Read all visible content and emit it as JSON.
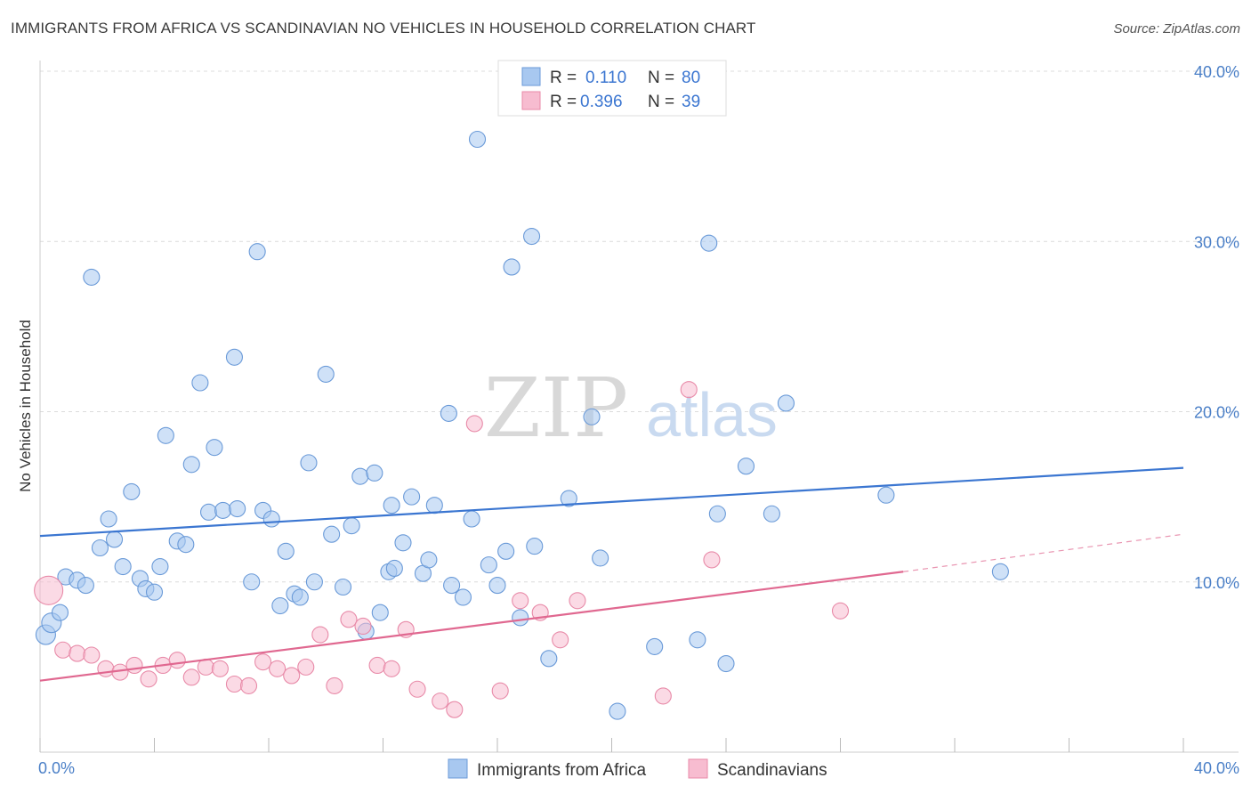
{
  "title": "IMMIGRANTS FROM AFRICA VS SCANDINAVIAN NO VEHICLES IN HOUSEHOLD CORRELATION CHART",
  "source": "Source: ZipAtlas.com",
  "watermark": {
    "zip": "ZIP",
    "atlas": "atlas"
  },
  "legend": {
    "r_label": "R =",
    "n_label": "N =",
    "rows": [
      {
        "r": "0.110",
        "n": "80",
        "color": "#a8c8f0",
        "stroke": "#6a9ad8"
      },
      {
        "r": "0.396",
        "n": "39",
        "color": "#f7bcd0",
        "stroke": "#e88aa8"
      }
    ]
  },
  "chart_data": {
    "type": "scatter",
    "title": "IMMIGRANTS FROM AFRICA VS SCANDINAVIAN NO VEHICLES IN HOUSEHOLD CORRELATION CHART",
    "xlabel": "",
    "ylabel": "No Vehicles in Household",
    "xlim": [
      0,
      40
    ],
    "ylim": [
      0,
      40
    ],
    "x_tick_labels": [
      "0.0%",
      "40.0%"
    ],
    "y_ticks": [
      10,
      20,
      30,
      40
    ],
    "y_tick_labels": [
      "10.0%",
      "20.0%",
      "30.0%",
      "40.0%"
    ],
    "grid": true,
    "series": [
      {
        "name": "Immigrants from Africa",
        "color": "#a8c8f0",
        "stroke": "#6a9ad8",
        "trend": {
          "x": [
            0,
            40
          ],
          "y": [
            12.7,
            16.7
          ],
          "color": "#3b76d1"
        },
        "points": [
          [
            0.2,
            6.9
          ],
          [
            0.4,
            7.6
          ],
          [
            0.7,
            8.2
          ],
          [
            0.9,
            10.3
          ],
          [
            1.3,
            10.1
          ],
          [
            1.6,
            9.8
          ],
          [
            1.8,
            27.9
          ],
          [
            2.1,
            12.0
          ],
          [
            2.4,
            13.7
          ],
          [
            2.6,
            12.5
          ],
          [
            2.9,
            10.9
          ],
          [
            3.2,
            15.3
          ],
          [
            3.5,
            10.2
          ],
          [
            3.7,
            9.6
          ],
          [
            4.0,
            9.4
          ],
          [
            4.2,
            10.9
          ],
          [
            4.4,
            18.6
          ],
          [
            4.8,
            12.4
          ],
          [
            5.1,
            12.2
          ],
          [
            5.3,
            16.9
          ],
          [
            5.6,
            21.7
          ],
          [
            5.9,
            14.1
          ],
          [
            6.1,
            17.9
          ],
          [
            6.4,
            14.2
          ],
          [
            6.8,
            23.2
          ],
          [
            6.9,
            14.3
          ],
          [
            7.4,
            10.0
          ],
          [
            7.6,
            29.4
          ],
          [
            7.8,
            14.2
          ],
          [
            8.1,
            13.7
          ],
          [
            8.4,
            8.6
          ],
          [
            8.6,
            11.8
          ],
          [
            8.9,
            9.3
          ],
          [
            9.1,
            9.1
          ],
          [
            9.4,
            17.0
          ],
          [
            9.6,
            10.0
          ],
          [
            10.0,
            22.2
          ],
          [
            10.2,
            12.8
          ],
          [
            10.6,
            9.7
          ],
          [
            10.9,
            13.3
          ],
          [
            11.2,
            16.2
          ],
          [
            11.4,
            7.1
          ],
          [
            11.7,
            16.4
          ],
          [
            11.9,
            8.2
          ],
          [
            12.2,
            10.6
          ],
          [
            12.4,
            10.8
          ],
          [
            12.7,
            12.3
          ],
          [
            13.0,
            15.0
          ],
          [
            13.4,
            10.5
          ],
          [
            13.6,
            11.3
          ],
          [
            13.8,
            14.5
          ],
          [
            14.3,
            19.9
          ],
          [
            14.4,
            9.8
          ],
          [
            14.8,
            9.1
          ],
          [
            15.1,
            13.7
          ],
          [
            15.3,
            36.0
          ],
          [
            15.7,
            11.0
          ],
          [
            16.0,
            9.8
          ],
          [
            16.3,
            11.8
          ],
          [
            16.5,
            28.5
          ],
          [
            16.8,
            7.9
          ],
          [
            17.2,
            30.3
          ],
          [
            17.3,
            12.1
          ],
          [
            17.8,
            5.5
          ],
          [
            18.5,
            14.9
          ],
          [
            19.3,
            19.7
          ],
          [
            19.6,
            11.4
          ],
          [
            20.2,
            2.4
          ],
          [
            21.5,
            6.2
          ],
          [
            23.0,
            6.6
          ],
          [
            23.4,
            29.9
          ],
          [
            23.7,
            14.0
          ],
          [
            24.0,
            5.2
          ],
          [
            24.7,
            16.8
          ],
          [
            25.6,
            14.0
          ],
          [
            26.1,
            20.5
          ],
          [
            29.6,
            15.1
          ],
          [
            33.6,
            10.6
          ],
          [
            20.8,
            39.0
          ],
          [
            12.3,
            14.5
          ]
        ]
      },
      {
        "name": "Scandinavians",
        "color": "#f7bcd0",
        "stroke": "#e88aa8",
        "trend": {
          "x": [
            0,
            30.2
          ],
          "y": [
            4.2,
            10.6
          ],
          "color": "#e06890"
        },
        "trend_dashed": {
          "x": [
            30.2,
            40
          ],
          "y": [
            10.6,
            12.8
          ]
        },
        "points": [
          [
            0.3,
            9.5
          ],
          [
            0.8,
            6.0
          ],
          [
            1.3,
            5.8
          ],
          [
            1.8,
            5.7
          ],
          [
            2.3,
            4.9
          ],
          [
            2.8,
            4.7
          ],
          [
            3.3,
            5.1
          ],
          [
            3.8,
            4.3
          ],
          [
            4.3,
            5.1
          ],
          [
            4.8,
            5.4
          ],
          [
            5.3,
            4.4
          ],
          [
            5.8,
            5.0
          ],
          [
            6.3,
            4.9
          ],
          [
            6.8,
            4.0
          ],
          [
            7.3,
            3.9
          ],
          [
            7.8,
            5.3
          ],
          [
            8.3,
            4.9
          ],
          [
            8.8,
            4.5
          ],
          [
            9.3,
            5.0
          ],
          [
            9.8,
            6.9
          ],
          [
            10.3,
            3.9
          ],
          [
            10.8,
            7.8
          ],
          [
            11.3,
            7.4
          ],
          [
            11.8,
            5.1
          ],
          [
            12.3,
            4.9
          ],
          [
            12.8,
            7.2
          ],
          [
            13.2,
            3.7
          ],
          [
            14.0,
            3.0
          ],
          [
            14.5,
            2.5
          ],
          [
            15.2,
            19.3
          ],
          [
            16.1,
            3.6
          ],
          [
            16.8,
            8.9
          ],
          [
            17.5,
            8.2
          ],
          [
            18.2,
            6.6
          ],
          [
            18.8,
            8.9
          ],
          [
            21.8,
            3.3
          ],
          [
            22.7,
            21.3
          ],
          [
            23.5,
            11.3
          ],
          [
            28.0,
            8.3
          ]
        ]
      }
    ]
  },
  "bottom_legend": [
    {
      "label": "Immigrants from Africa",
      "color": "#a8c8f0",
      "stroke": "#6a9ad8"
    },
    {
      "label": "Scandinavians",
      "color": "#f7bcd0",
      "stroke": "#e88aa8"
    }
  ]
}
